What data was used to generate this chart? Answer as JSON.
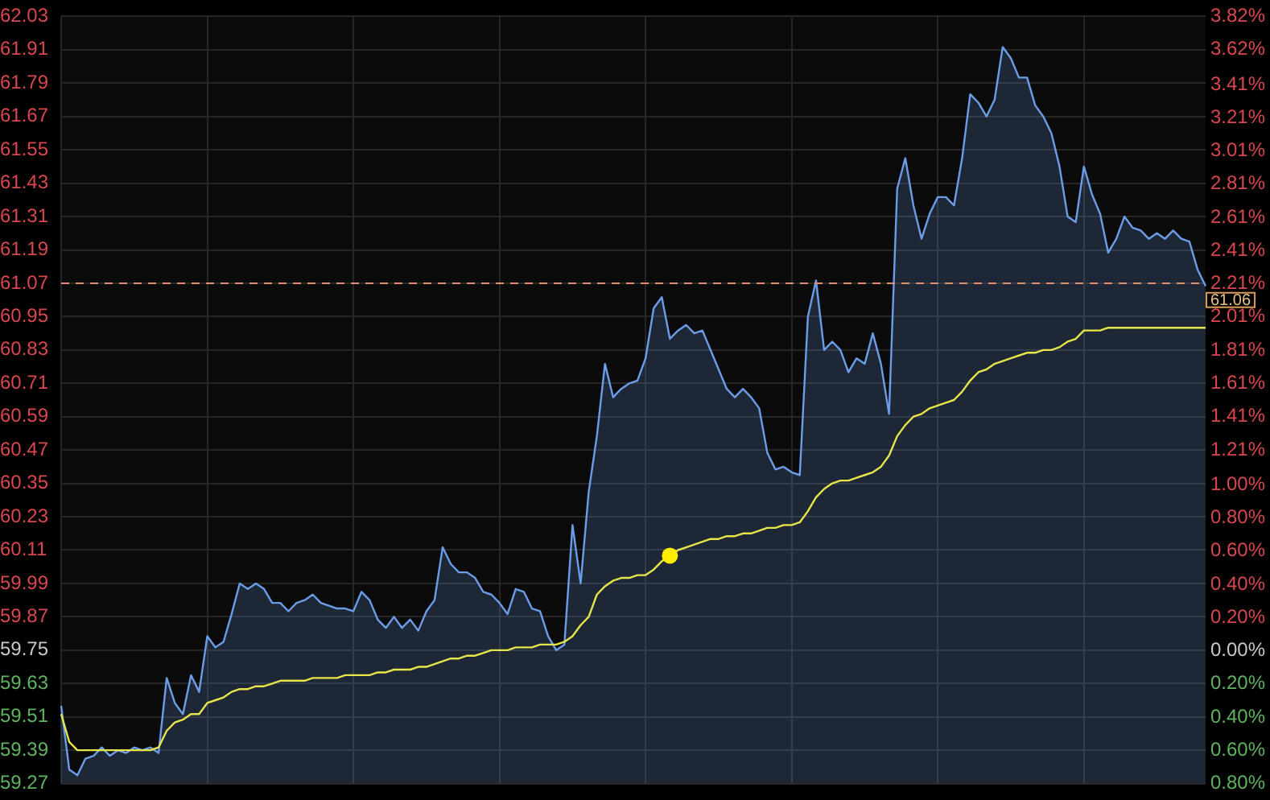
{
  "chart_data": {
    "type": "area",
    "categories": [
      null,
      null,
      null,
      null,
      null,
      null,
      null,
      null,
      null,
      null,
      null,
      null,
      null,
      null,
      null,
      null,
      null,
      null,
      null,
      null,
      null,
      null,
      null,
      null,
      null,
      null,
      null,
      null,
      null,
      null,
      null,
      null,
      null,
      null,
      null,
      null,
      null,
      null,
      null,
      null,
      null,
      null,
      null,
      null,
      null,
      null,
      null,
      null,
      null,
      null,
      null,
      null,
      null,
      null,
      null,
      null,
      null,
      null,
      null,
      null,
      null,
      null,
      null,
      null,
      null,
      null,
      null,
      null,
      null,
      null,
      null,
      null,
      null,
      null,
      null,
      null,
      null,
      null,
      null,
      null,
      null,
      null,
      null,
      null,
      null,
      null,
      null,
      null,
      null,
      null,
      null,
      null,
      null,
      null,
      null,
      null,
      null,
      null,
      null,
      null,
      null,
      null,
      null,
      null,
      null,
      null,
      null,
      null,
      null,
      null,
      null,
      null,
      null,
      null,
      null,
      null,
      null,
      null,
      null,
      null,
      null,
      null,
      null,
      null,
      null,
      null,
      null,
      null,
      null,
      null,
      null,
      null,
      null,
      null,
      null,
      null,
      null,
      null,
      null,
      null,
      null,
      null
    ],
    "series": [
      {
        "type": "area",
        "color": "#6b9de8",
        "values": [
          59.55,
          59.32,
          59.3,
          59.36,
          59.37,
          59.4,
          59.37,
          59.39,
          59.38,
          59.4,
          59.39,
          59.4,
          59.38,
          59.65,
          59.56,
          59.52,
          59.66,
          59.6,
          59.8,
          59.76,
          59.78,
          59.88,
          59.99,
          59.97,
          59.99,
          59.97,
          59.92,
          59.92,
          59.89,
          59.92,
          59.93,
          59.95,
          59.92,
          59.91,
          59.9,
          59.9,
          59.89,
          59.96,
          59.93,
          59.86,
          59.83,
          59.87,
          59.83,
          59.86,
          59.82,
          59.89,
          59.93,
          60.12,
          60.06,
          60.03,
          60.03,
          60.01,
          59.96,
          59.95,
          59.92,
          59.88,
          59.97,
          59.96,
          59.9,
          59.89,
          59.8,
          59.75,
          59.77,
          60.2,
          59.99,
          60.32,
          60.52,
          60.78,
          60.66,
          60.69,
          60.71,
          60.72,
          60.8,
          60.98,
          61.02,
          60.87,
          60.9,
          60.92,
          60.89,
          60.9,
          60.83,
          60.76,
          60.69,
          60.66,
          60.69,
          60.66,
          60.62,
          60.46,
          60.4,
          60.41,
          60.39,
          60.38,
          60.95,
          61.08,
          60.83,
          60.86,
          60.83,
          60.75,
          60.8,
          60.78,
          60.89,
          60.78,
          60.6,
          61.41,
          61.52,
          61.35,
          61.23,
          61.32,
          61.38,
          61.38,
          61.35,
          61.52,
          61.75,
          61.72,
          61.67,
          61.73,
          61.92,
          61.88,
          61.81,
          61.81,
          61.71,
          61.67,
          61.61,
          61.49,
          61.31,
          61.29,
          61.49,
          61.39,
          61.32,
          61.18,
          61.23,
          61.31,
          61.27,
          61.26,
          61.23,
          61.25,
          61.23,
          61.26,
          61.23,
          61.22,
          61.12,
          61.06
        ]
      },
      {
        "type": "line",
        "color": "#e6e64a",
        "values": [
          59.52,
          59.42,
          59.39,
          59.39,
          59.39,
          59.39,
          59.39,
          59.39,
          59.39,
          59.39,
          59.39,
          59.39,
          59.4,
          59.46,
          59.49,
          59.5,
          59.52,
          59.52,
          59.56,
          59.57,
          59.58,
          59.6,
          59.61,
          59.61,
          59.62,
          59.62,
          59.63,
          59.64,
          59.64,
          59.64,
          59.64,
          59.65,
          59.65,
          59.65,
          59.65,
          59.66,
          59.66,
          59.66,
          59.66,
          59.67,
          59.67,
          59.68,
          59.68,
          59.68,
          59.69,
          59.69,
          59.7,
          59.71,
          59.72,
          59.72,
          59.73,
          59.73,
          59.74,
          59.75,
          59.75,
          59.75,
          59.76,
          59.76,
          59.76,
          59.77,
          59.77,
          59.77,
          59.78,
          59.8,
          59.84,
          59.87,
          59.95,
          59.98,
          60.0,
          60.01,
          60.01,
          60.02,
          60.02,
          60.04,
          60.07,
          60.09,
          60.11,
          60.12,
          60.13,
          60.14,
          60.15,
          60.15,
          60.16,
          60.16,
          60.17,
          60.17,
          60.18,
          60.19,
          60.19,
          60.2,
          60.2,
          60.21,
          60.25,
          60.3,
          60.33,
          60.35,
          60.36,
          60.36,
          60.37,
          60.38,
          60.39,
          60.41,
          60.45,
          60.52,
          60.56,
          60.59,
          60.6,
          60.62,
          60.63,
          60.64,
          60.65,
          60.68,
          60.72,
          60.75,
          60.76,
          60.78,
          60.79,
          60.8,
          60.81,
          60.82,
          60.82,
          60.83,
          60.83,
          60.84,
          60.86,
          60.87,
          60.9,
          60.9,
          60.9,
          60.91,
          60.91,
          60.91,
          60.91,
          60.91,
          60.91,
          60.91,
          60.91,
          60.91,
          60.91,
          60.91,
          60.91,
          60.91
        ]
      },
      {
        "type": "scatter",
        "color": "#ffee00",
        "marker": "circle",
        "values": [
          null,
          null,
          null,
          null,
          null,
          null,
          null,
          null,
          null,
          null,
          null,
          null,
          null,
          null,
          null,
          null,
          null,
          null,
          null,
          null,
          null,
          null,
          null,
          null,
          null,
          null,
          null,
          null,
          null,
          null,
          null,
          null,
          null,
          null,
          null,
          null,
          null,
          null,
          null,
          null,
          null,
          null,
          null,
          null,
          null,
          null,
          null,
          null,
          null,
          null,
          null,
          null,
          null,
          null,
          null,
          null,
          null,
          null,
          null,
          null,
          null,
          null,
          null,
          null,
          null,
          null,
          null,
          null,
          null,
          null,
          null,
          null,
          null,
          null,
          null,
          60.09,
          null,
          null,
          null,
          null,
          null,
          null,
          null,
          null,
          null,
          null,
          null,
          null,
          null,
          null,
          null,
          null,
          null,
          null,
          null,
          null,
          null,
          null,
          null,
          null,
          null,
          null,
          null,
          null,
          null,
          null,
          null,
          null,
          null,
          null,
          null,
          null,
          null,
          null,
          null,
          null,
          null,
          null,
          null,
          null,
          null,
          null,
          null,
          null,
          null,
          null,
          null,
          null,
          null,
          null,
          null,
          null,
          null,
          null,
          null,
          null,
          null,
          null,
          null,
          null,
          null,
          null
        ]
      }
    ],
    "ylim": [
      59.27,
      62.03
    ],
    "yticks": [
      62.03,
      61.91,
      61.79,
      61.67,
      61.55,
      61.43,
      61.31,
      61.19,
      61.07,
      60.95,
      60.83,
      60.71,
      60.59,
      60.47,
      60.35,
      60.23,
      60.11,
      59.99,
      59.87,
      59.75,
      59.63,
      59.51,
      59.39,
      59.27
    ],
    "y2lim": [
      -0.8,
      3.82
    ],
    "y2ticks": [
      {
        "value": 3.82,
        "label": "3.82%"
      },
      {
        "value": 3.62,
        "label": "3.62%"
      },
      {
        "value": 3.41,
        "label": "3.41%"
      },
      {
        "value": 3.21,
        "label": "3.21%"
      },
      {
        "value": 3.01,
        "label": "3.01%"
      },
      {
        "value": 2.81,
        "label": "2.81%"
      },
      {
        "value": 2.61,
        "label": "2.61%"
      },
      {
        "value": 2.41,
        "label": "2.41%"
      },
      {
        "value": 2.21,
        "label": "2.21%"
      },
      {
        "value": 2.01,
        "label": "2.01%"
      },
      {
        "value": 1.81,
        "label": "1.81%"
      },
      {
        "value": 1.61,
        "label": "1.61%"
      },
      {
        "value": 1.41,
        "label": "1.41%"
      },
      {
        "value": 1.21,
        "label": "1.21%"
      },
      {
        "value": 1.0,
        "label": "1.00%"
      },
      {
        "value": 0.8,
        "label": "0.80%"
      },
      {
        "value": 0.6,
        "label": "0.60%"
      },
      {
        "value": 0.4,
        "label": "0.40%"
      },
      {
        "value": 0.2,
        "label": "0.20%"
      },
      {
        "value": 0,
        "label": "0.00%"
      },
      {
        "value": -0.2,
        "label": "0.20%"
      },
      {
        "value": -0.4,
        "label": "0.40%"
      },
      {
        "value": -0.6,
        "label": "0.60%"
      },
      {
        "value": -0.8,
        "label": "0.80%"
      }
    ],
    "ref_lines": [
      {
        "axis": "y",
        "value": 61.07,
        "color": "#e0906a",
        "line_style": "dashed"
      }
    ],
    "annotations": [
      "61.06"
    ],
    "grid": true,
    "tick_labels": "y"
  }
}
